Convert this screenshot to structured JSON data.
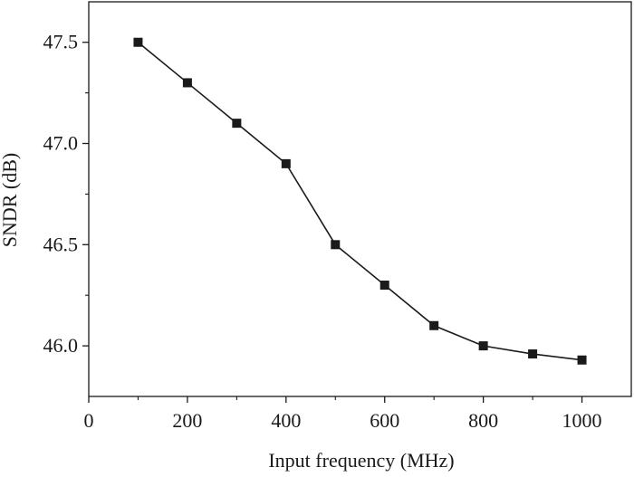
{
  "chart_data": {
    "type": "line",
    "title": "",
    "xlabel": "Input frequency (MHz)",
    "ylabel": "SNDR (dB)",
    "xlim": [
      0,
      1100
    ],
    "ylim": [
      45.75,
      47.7
    ],
    "x_ticks": [
      0,
      200,
      400,
      600,
      800,
      1000
    ],
    "x_tick_labels": [
      "0",
      "200",
      "400",
      "600",
      "800",
      "1000"
    ],
    "y_ticks": [
      46.0,
      46.5,
      47.0,
      47.5
    ],
    "y_tick_labels": [
      "46.0",
      "46.5",
      "47.0",
      "47.5"
    ],
    "grid": false,
    "legend": "none",
    "marker": "square",
    "series": [
      {
        "x": [
          100,
          200,
          300,
          400,
          500,
          600,
          700,
          800,
          900,
          1000
        ],
        "values": [
          47.5,
          47.3,
          47.1,
          46.9,
          46.5,
          46.3,
          46.1,
          46.0,
          45.96,
          45.93
        ]
      }
    ],
    "colors": {
      "line": "#1a1a1a",
      "marker": "#1a1a1a",
      "axis": "#1a1a1a"
    }
  }
}
